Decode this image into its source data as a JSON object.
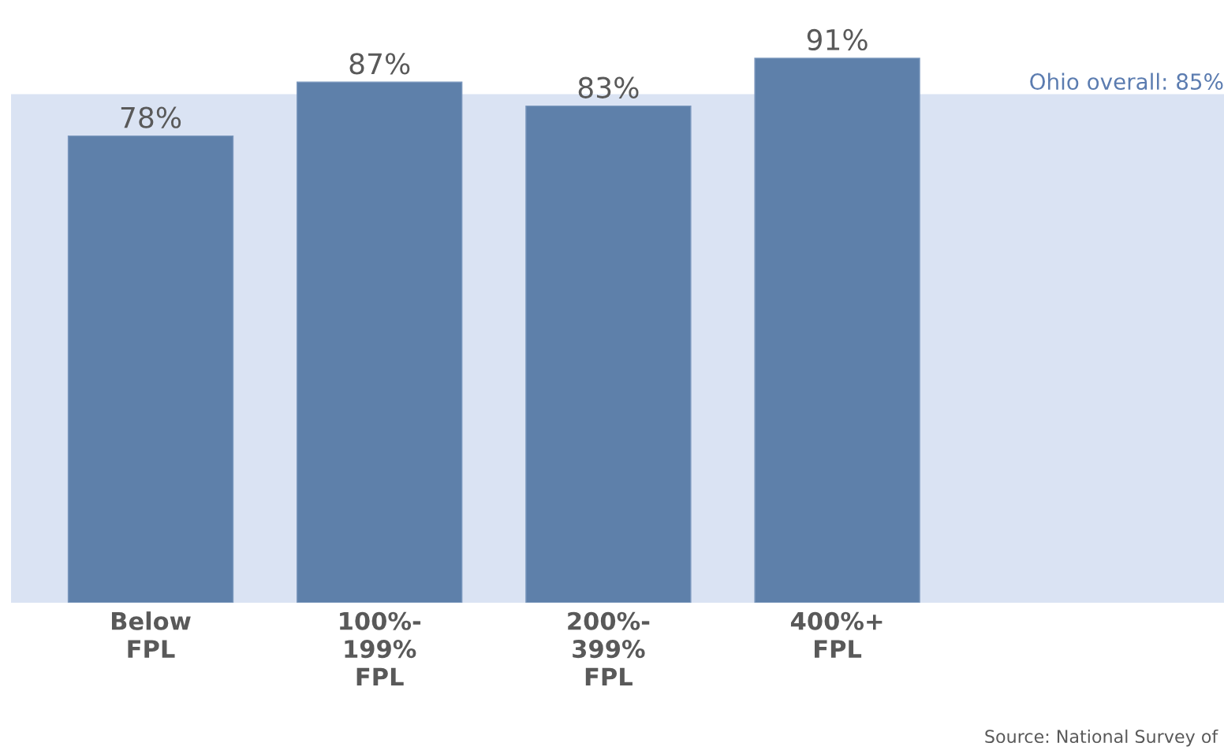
{
  "chart_data": {
    "type": "bar",
    "categories": [
      "Below\nFPL",
      "100%-\n199%\nFPL",
      "200%-\n399%\nFPL",
      "400%+\nFPL"
    ],
    "values": [
      78,
      87,
      83,
      91
    ],
    "color": "#5e80aa",
    "value_labels": [
      "78%",
      "87%",
      "83%",
      "91%"
    ],
    "bands": [
      {
        "axis": "y",
        "from": 0,
        "to": 85,
        "label": "Ohio overall: 85%",
        "color": "#dae3f3"
      }
    ],
    "annotations": [
      "Source: National Survey of"
    ],
    "grid": false,
    "legend": false
  }
}
